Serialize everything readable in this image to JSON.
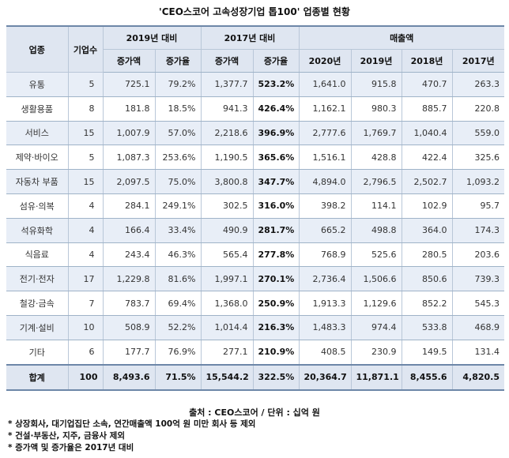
{
  "title": "'CEO스코어 고속성장기업 톱100' 업종별 현황",
  "headers": {
    "industry": "업종",
    "count": "기업수",
    "group1": "2019년 대비",
    "group2": "2017년 대비",
    "group3": "매출액",
    "inc_amt": "증가액",
    "inc_rate": "증가율",
    "y2020": "2020년",
    "y2019": "2019년",
    "y2018": "2018년",
    "y2017": "2017년"
  },
  "rows": [
    {
      "industry": "유통",
      "count": "5",
      "a1": "725.1",
      "r1": "79.2%",
      "a2": "1,377.7",
      "r2": "523.2%",
      "s2020": "1,641.0",
      "s2019": "915.8",
      "s2018": "470.7",
      "s2017": "263.3"
    },
    {
      "industry": "생활용품",
      "count": "8",
      "a1": "181.8",
      "r1": "18.5%",
      "a2": "941.3",
      "r2": "426.4%",
      "s2020": "1,162.1",
      "s2019": "980.3",
      "s2018": "885.7",
      "s2017": "220.8"
    },
    {
      "industry": "서비스",
      "count": "15",
      "a1": "1,007.9",
      "r1": "57.0%",
      "a2": "2,218.6",
      "r2": "396.9%",
      "s2020": "2,777.6",
      "s2019": "1,769.7",
      "s2018": "1,040.4",
      "s2017": "559.0"
    },
    {
      "industry": "제약·바이오",
      "count": "5",
      "a1": "1,087.3",
      "r1": "253.6%",
      "a2": "1,190.5",
      "r2": "365.6%",
      "s2020": "1,516.1",
      "s2019": "428.8",
      "s2018": "422.4",
      "s2017": "325.6"
    },
    {
      "industry": "자동차 부품",
      "count": "15",
      "a1": "2,097.5",
      "r1": "75.0%",
      "a2": "3,800.8",
      "r2": "347.7%",
      "s2020": "4,894.0",
      "s2019": "2,796.5",
      "s2018": "2,502.7",
      "s2017": "1,093.2"
    },
    {
      "industry": "섬유·의복",
      "count": "4",
      "a1": "284.1",
      "r1": "249.1%",
      "a2": "302.5",
      "r2": "316.0%",
      "s2020": "398.2",
      "s2019": "114.1",
      "s2018": "102.9",
      "s2017": "95.7"
    },
    {
      "industry": "석유화학",
      "count": "4",
      "a1": "166.4",
      "r1": "33.4%",
      "a2": "490.9",
      "r2": "281.7%",
      "s2020": "665.2",
      "s2019": "498.8",
      "s2018": "364.0",
      "s2017": "174.3"
    },
    {
      "industry": "식음료",
      "count": "4",
      "a1": "243.4",
      "r1": "46.3%",
      "a2": "565.4",
      "r2": "277.8%",
      "s2020": "768.9",
      "s2019": "525.6",
      "s2018": "280.5",
      "s2017": "203.6"
    },
    {
      "industry": "전기·전자",
      "count": "17",
      "a1": "1,229.8",
      "r1": "81.6%",
      "a2": "1,997.1",
      "r2": "270.1%",
      "s2020": "2,736.4",
      "s2019": "1,506.6",
      "s2018": "850.6",
      "s2017": "739.3"
    },
    {
      "industry": "철강·금속",
      "count": "7",
      "a1": "783.7",
      "r1": "69.4%",
      "a2": "1,368.0",
      "r2": "250.9%",
      "s2020": "1,913.3",
      "s2019": "1,129.6",
      "s2018": "852.2",
      "s2017": "545.3"
    },
    {
      "industry": "기계·설비",
      "count": "10",
      "a1": "508.9",
      "r1": "52.2%",
      "a2": "1,014.4",
      "r2": "216.3%",
      "s2020": "1,483.3",
      "s2019": "974.4",
      "s2018": "533.8",
      "s2017": "468.9"
    },
    {
      "industry": "기타",
      "count": "6",
      "a1": "177.7",
      "r1": "76.9%",
      "a2": "277.1",
      "r2": "210.9%",
      "s2020": "408.5",
      "s2019": "230.9",
      "s2018": "149.5",
      "s2017": "131.4"
    }
  ],
  "total": {
    "industry": "합계",
    "count": "100",
    "a1": "8,493.6",
    "r1": "71.5%",
    "a2": "15,544.2",
    "r2": "322.5%",
    "s2020": "20,364.7",
    "s2019": "11,871.1",
    "s2018": "8,455.6",
    "s2017": "4,820.5"
  },
  "source": "출처 : CEO스코어 / 단위 : 십억 원",
  "notes": [
    "* 상장회사, 대기업집단 소속, 연간매출액 100억 원 미만 회사 등 제외",
    "* 건설·부동산, 지주, 금융사 제외",
    "* 증가액 및 증가율은 2017년 대비"
  ]
}
